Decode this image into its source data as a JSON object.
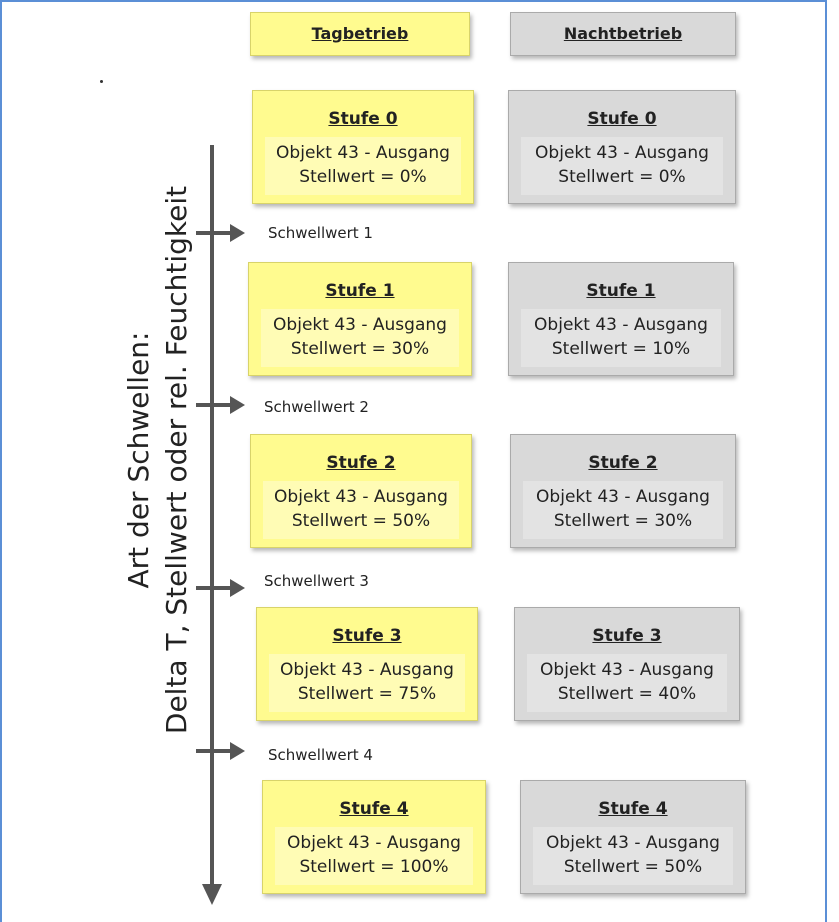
{
  "header": {
    "day_label": "Tagbetrieb",
    "night_label": "Nachtbetrieb"
  },
  "axis_label": {
    "line1": "Art der Schwellen:",
    "line2": "Delta T, Stellwert oder rel. Feuchtigkeit"
  },
  "thresholds": [
    "Schwellwert 1",
    "Schwellwert 2",
    "Schwellwert 3",
    "Schwellwert 4"
  ],
  "day_levels": [
    {
      "title": "Stufe 0",
      "object": "Objekt 43 - Ausgang",
      "value": "Stellwert = 0%"
    },
    {
      "title": "Stufe 1",
      "object": "Objekt 43 - Ausgang",
      "value": "Stellwert = 30%"
    },
    {
      "title": "Stufe 2",
      "object": "Objekt 43 - Ausgang",
      "value": "Stellwert = 50%"
    },
    {
      "title": "Stufe 3",
      "object": "Objekt 43 - Ausgang",
      "value": "Stellwert = 75%"
    },
    {
      "title": "Stufe 4",
      "object": "Objekt 43 - Ausgang",
      "value": "Stellwert = 100%"
    }
  ],
  "night_levels": [
    {
      "title": "Stufe 0",
      "object": "Objekt 43 - Ausgang",
      "value": "Stellwert = 0%"
    },
    {
      "title": "Stufe 1",
      "object": "Objekt 43 - Ausgang",
      "value": "Stellwert = 10%"
    },
    {
      "title": "Stufe 2",
      "object": "Objekt 43 - Ausgang",
      "value": "Stellwert = 30%"
    },
    {
      "title": "Stufe 3",
      "object": "Objekt 43 - Ausgang",
      "value": "Stellwert = 40%"
    },
    {
      "title": "Stufe 4",
      "object": "Objekt 43 - Ausgang",
      "value": "Stellwert = 50%"
    }
  ],
  "colors": {
    "day": "#fffb8f",
    "night": "#d9d9d9",
    "arrow": "#555555",
    "frame": "#5b8fd6"
  }
}
